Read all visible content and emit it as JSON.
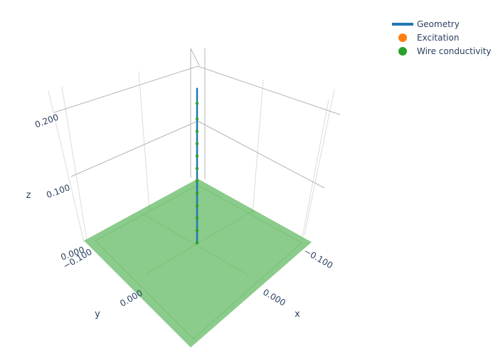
{
  "chart_data": {
    "type": "scatter3d",
    "axes": {
      "x": {
        "label": "x",
        "ticks": [
          "−0.100",
          "0.000"
        ]
      },
      "y": {
        "label": "y",
        "ticks": [
          "−0.100",
          "0.000"
        ]
      },
      "z": {
        "label": "z",
        "ticks": [
          "0.000",
          "0.100",
          "0.200"
        ]
      }
    },
    "legend": {
      "placement": "top-right",
      "entries": [
        {
          "name": "Geometry",
          "kind": "line",
          "color": "#1f77b4"
        },
        {
          "name": "Excitation",
          "kind": "marker",
          "color": "#ff7f0e"
        },
        {
          "name": "Wire conductivity",
          "kind": "marker",
          "color": "#2ca02c"
        }
      ]
    },
    "ground_plane": {
      "color": "#2ca02c",
      "opacity": 0.55
    },
    "geometry_wire": {
      "x": 0,
      "y": 0,
      "z": [
        0.0,
        0.25
      ]
    },
    "wire_conductivity_points": {
      "x": 0,
      "y": 0,
      "z": [
        0.0,
        0.02,
        0.04,
        0.06,
        0.08,
        0.1,
        0.12,
        0.14,
        0.16,
        0.18,
        0.2,
        0.225
      ]
    }
  }
}
